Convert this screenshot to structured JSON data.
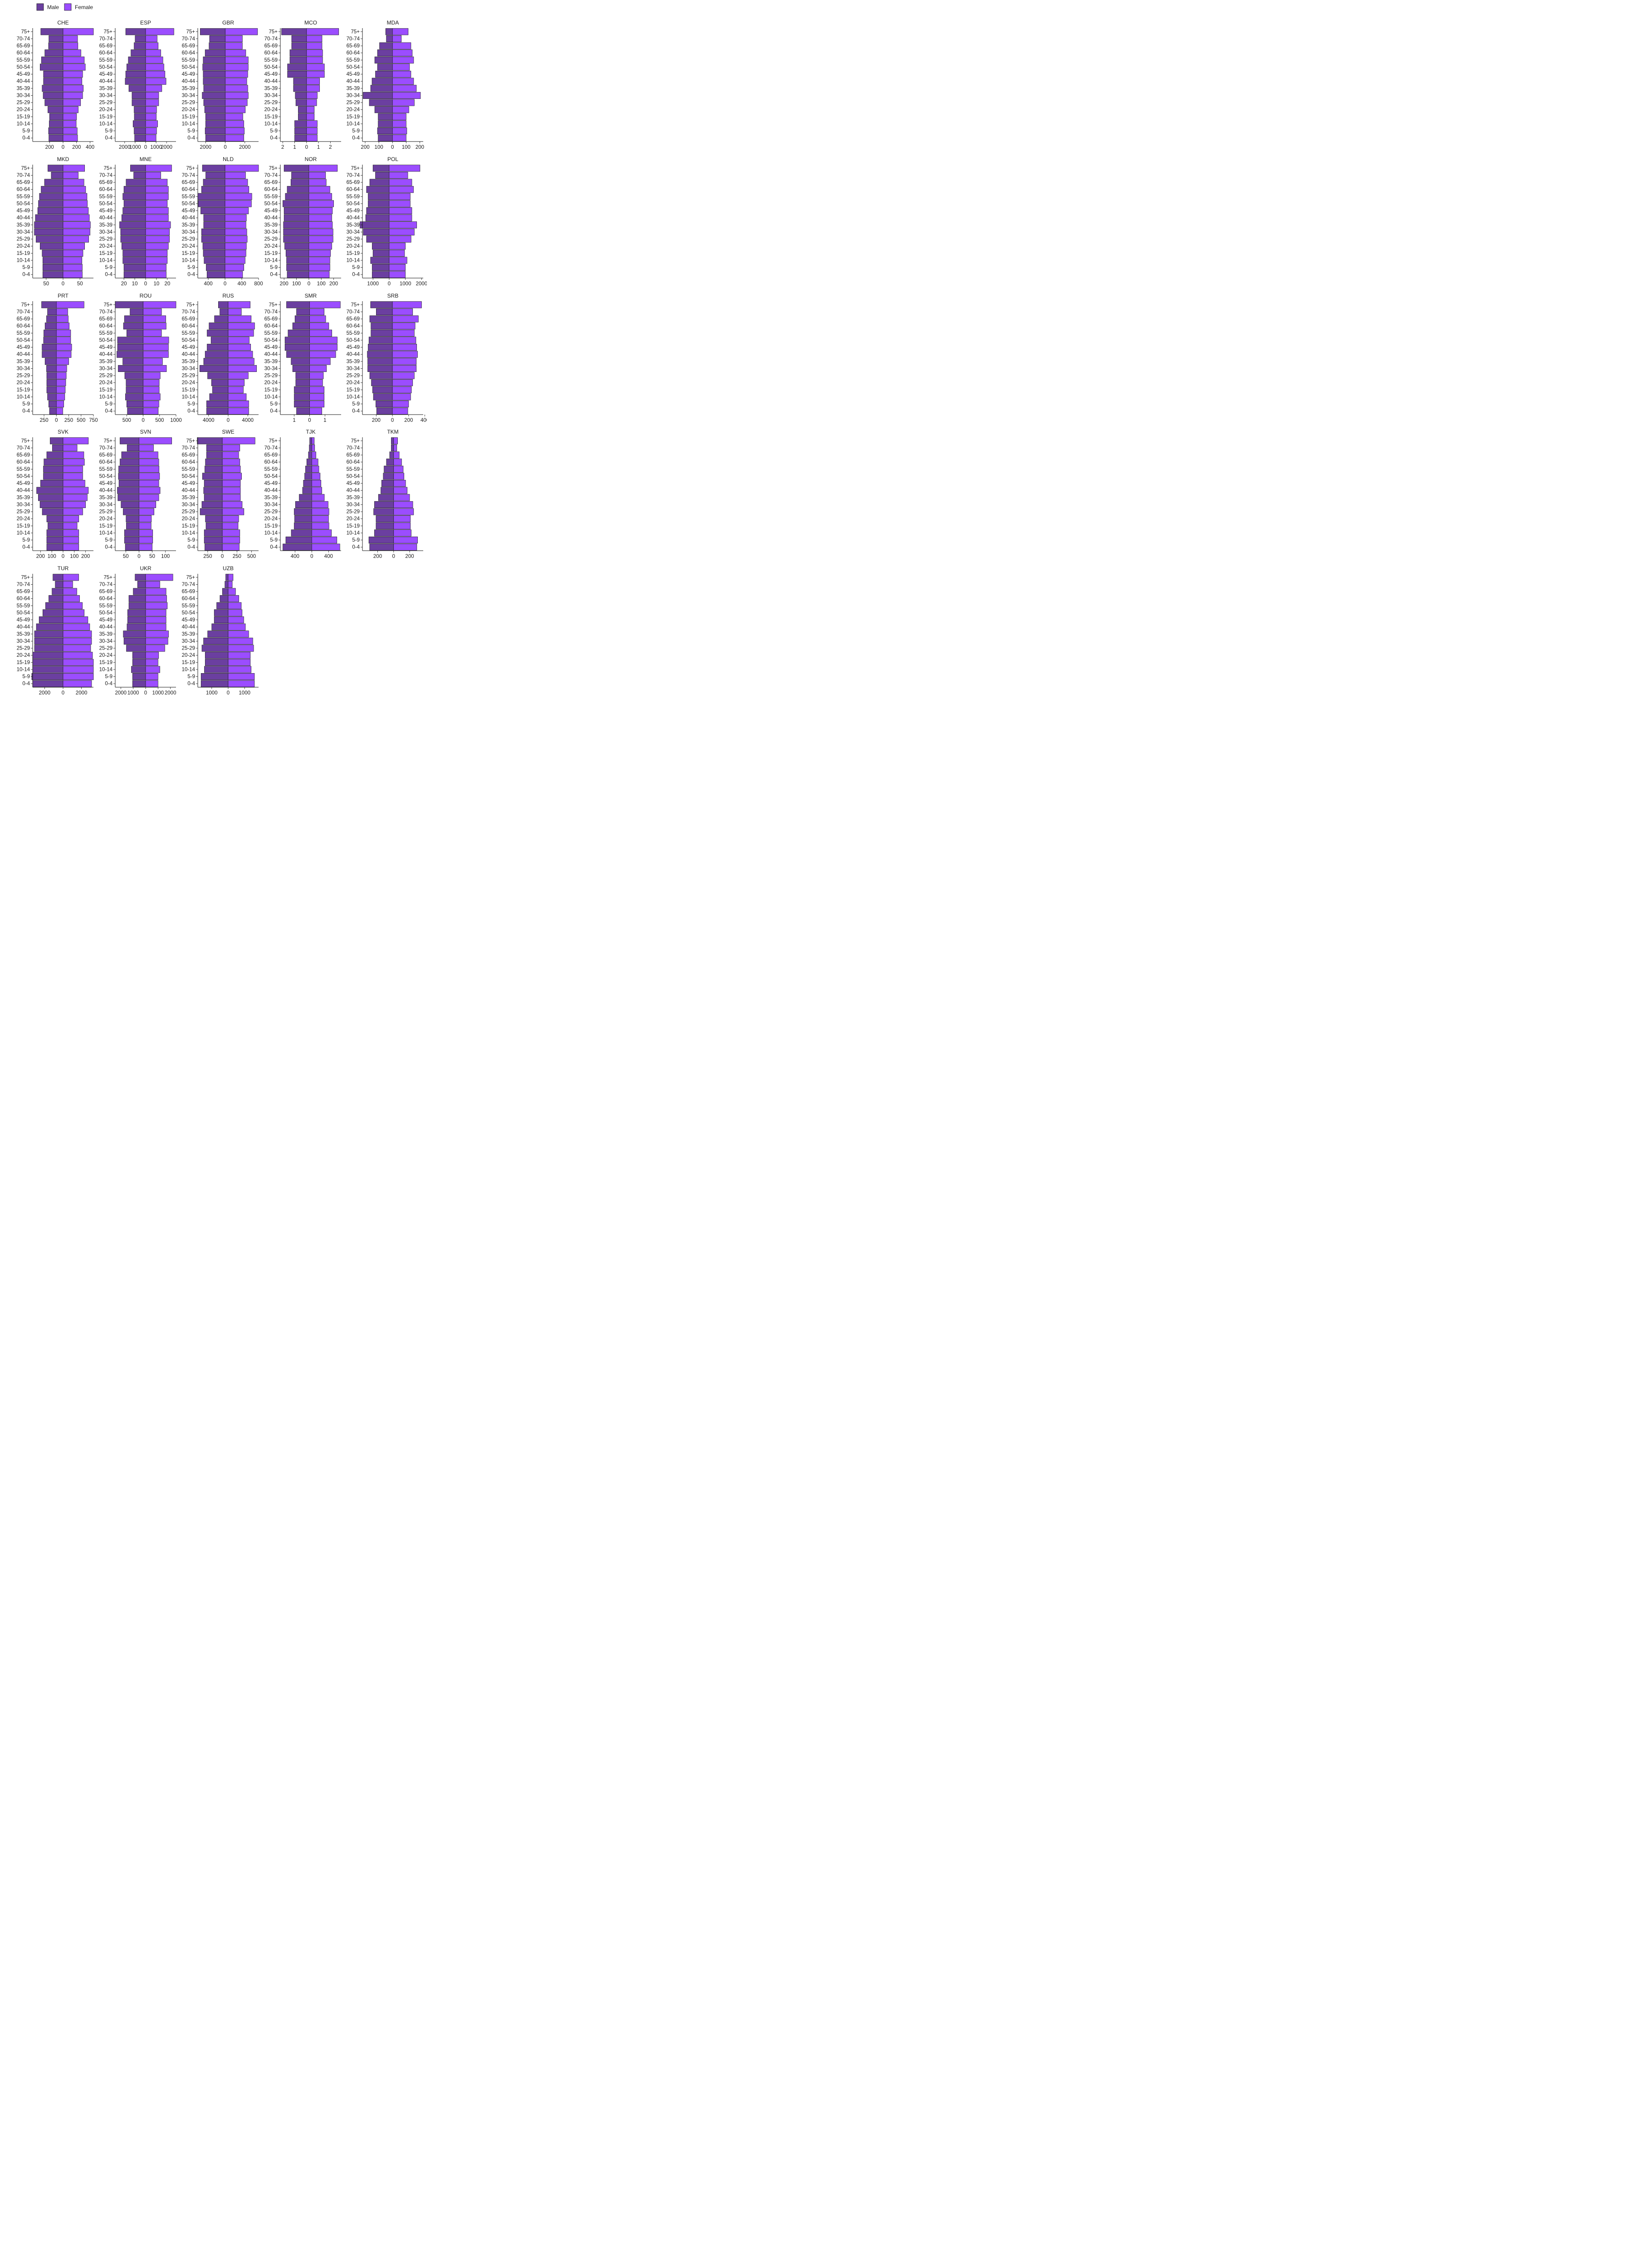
{
  "chart_data": {
    "type": "bar",
    "subtype": "population-pyramid",
    "orientation": "horizontal",
    "legend": {
      "position": "top-left",
      "items": [
        {
          "name": "Male",
          "color": "#6B3FA0"
        },
        {
          "name": "Female",
          "color": "#9B4DFF"
        }
      ]
    },
    "grid": false,
    "age_groups": [
      "0-4",
      "5-9",
      "10-14",
      "15-19",
      "20-24",
      "25-29",
      "30-34",
      "35-39",
      "40-44",
      "45-49",
      "50-54",
      "55-59",
      "60-64",
      "65-69",
      "70-74",
      "75+"
    ],
    "panels": [
      {
        "country": "CHE",
        "xlim": [
          -450,
          450
        ],
        "ticks": [
          -200,
          0,
          200,
          400
        ],
        "tick_labels": [
          "200",
          "0",
          "200",
          "400"
        ],
        "male": [
          210,
          215,
          205,
          200,
          225,
          270,
          295,
          310,
          290,
          290,
          340,
          320,
          270,
          215,
          210,
          330
        ],
        "female": [
          215,
          210,
          195,
          200,
          225,
          260,
          290,
          300,
          280,
          290,
          330,
          315,
          265,
          220,
          215,
          450
        ]
      },
      {
        "country": "ESP",
        "xlim": [
          -2900,
          2900
        ],
        "ticks": [
          -2000,
          -1000,
          0,
          1000,
          2000
        ],
        "tick_labels": [
          "2000",
          "1000",
          "0",
          "1000",
          "2000"
        ],
        "male": [
          1050,
          1100,
          1200,
          1080,
          1100,
          1300,
          1300,
          1600,
          1950,
          1900,
          1800,
          1650,
          1400,
          1100,
          1000,
          1900
        ],
        "female": [
          1000,
          1050,
          1150,
          1020,
          1050,
          1250,
          1250,
          1550,
          1950,
          1850,
          1750,
          1650,
          1450,
          1200,
          1100,
          2700
        ]
      },
      {
        "country": "GBR",
        "xlim": [
          -2800,
          3400
        ],
        "ticks": [
          -2000,
          0,
          2000
        ],
        "tick_labels": [
          "2000",
          "0",
          "2000"
        ],
        "male": [
          2000,
          2050,
          2000,
          2000,
          2100,
          2200,
          2350,
          2200,
          2250,
          2250,
          2300,
          2250,
          2050,
          1650,
          1600,
          2550
        ],
        "female": [
          1900,
          1950,
          1900,
          1800,
          2050,
          2250,
          2350,
          2300,
          2200,
          2300,
          2350,
          2350,
          2100,
          1750,
          1750,
          3300
        ]
      },
      {
        "country": "MCO",
        "xlim": [
          -2.2,
          2.9
        ],
        "ticks": [
          -2,
          -1,
          0,
          1,
          2
        ],
        "tick_labels": [
          "2",
          "1",
          "0",
          "1",
          "2"
        ],
        "male": [
          1.0,
          1.0,
          1.0,
          0.7,
          0.7,
          0.9,
          0.95,
          1.1,
          1.1,
          1.6,
          1.6,
          1.4,
          1.4,
          1.25,
          1.25,
          2.1
        ],
        "female": [
          0.9,
          0.9,
          0.9,
          0.65,
          0.65,
          0.85,
          0.9,
          1.1,
          1.1,
          1.5,
          1.5,
          1.35,
          1.35,
          1.3,
          1.3,
          2.7
        ]
      },
      {
        "country": "MDA",
        "xlim": [
          -220,
          225
        ],
        "ticks": [
          -200,
          -100,
          0,
          100,
          200
        ],
        "tick_labels": [
          "200",
          "100",
          "0",
          "100",
          "200"
        ],
        "male": [
          105,
          110,
          105,
          105,
          130,
          170,
          215,
          160,
          150,
          125,
          110,
          130,
          110,
          95,
          45,
          50
        ],
        "female": [
          100,
          105,
          100,
          100,
          120,
          160,
          205,
          175,
          155,
          135,
          125,
          155,
          145,
          135,
          65,
          115
        ]
      },
      {
        "country": "MKD",
        "xlim": [
          -90,
          90
        ],
        "ticks": [
          -50,
          0,
          50
        ],
        "tick_labels": [
          "50",
          "0",
          "50"
        ],
        "male": [
          60,
          60,
          60,
          62,
          68,
          80,
          85,
          85,
          82,
          75,
          73,
          70,
          65,
          55,
          35,
          45
        ],
        "female": [
          57,
          57,
          56,
          59,
          64,
          76,
          80,
          81,
          78,
          75,
          72,
          71,
          67,
          62,
          45,
          64
        ]
      },
      {
        "country": "MNE",
        "xlim": [
          -28,
          28
        ],
        "ticks": [
          -20,
          -10,
          0,
          10,
          20
        ],
        "tick_labels": [
          "20",
          "10",
          "0",
          "10",
          "20"
        ],
        "male": [
          20,
          20,
          21,
          21,
          22,
          23,
          23,
          24,
          22,
          21,
          20,
          21,
          20,
          18,
          11,
          14
        ],
        "female": [
          19,
          19,
          20,
          20,
          21,
          22,
          22,
          23,
          21,
          21,
          20,
          21,
          21,
          20,
          14,
          24
        ]
      },
      {
        "country": "NLD",
        "xlim": [
          -650,
          800
        ],
        "ticks": [
          -400,
          0,
          400,
          800
        ],
        "tick_labels": [
          "400",
          "0",
          "400",
          "800"
        ],
        "male": [
          430,
          450,
          500,
          520,
          530,
          560,
          560,
          510,
          510,
          580,
          640,
          650,
          560,
          520,
          460,
          540
        ],
        "female": [
          420,
          450,
          480,
          500,
          510,
          530,
          520,
          500,
          510,
          560,
          630,
          640,
          570,
          540,
          490,
          800
        ]
      },
      {
        "country": "NOR",
        "xlim": [
          -230,
          260
        ],
        "ticks": [
          -200,
          -100,
          0,
          100,
          200
        ],
        "tick_labels": [
          "200",
          "100",
          "0",
          "100",
          "200"
        ],
        "male": [
          175,
          180,
          180,
          185,
          195,
          205,
          205,
          205,
          200,
          200,
          210,
          190,
          175,
          145,
          140,
          200
        ],
        "female": [
          165,
          170,
          170,
          175,
          185,
          195,
          195,
          190,
          185,
          190,
          200,
          185,
          170,
          140,
          135,
          230
        ]
      },
      {
        "country": "POL",
        "xlim": [
          -1650,
          2100
        ],
        "ticks": [
          -1000,
          0,
          1000,
          2000
        ],
        "tick_labels": [
          "1000",
          "0",
          "1000",
          "2000"
        ],
        "male": [
          1050,
          1050,
          1150,
          1000,
          1050,
          1400,
          1600,
          1800,
          1450,
          1400,
          1300,
          1300,
          1400,
          1200,
          850,
          1000
        ],
        "female": [
          1000,
          1000,
          1100,
          950,
          1000,
          1350,
          1550,
          1700,
          1400,
          1400,
          1300,
          1300,
          1500,
          1400,
          1150,
          1900
        ]
      },
      {
        "country": "PRT",
        "xlim": [
          -480,
          750
        ],
        "ticks": [
          -250,
          0,
          250,
          500,
          750
        ],
        "tick_labels": [
          "250",
          "0",
          "250",
          "500",
          "750"
        ],
        "male": [
          140,
          155,
          180,
          195,
          195,
          195,
          200,
          230,
          290,
          290,
          260,
          255,
          230,
          200,
          180,
          300
        ],
        "female": [
          130,
          150,
          170,
          180,
          190,
          200,
          210,
          250,
          300,
          310,
          290,
          290,
          260,
          240,
          230,
          560
        ]
      },
      {
        "country": "ROU",
        "xlim": [
          -850,
          1000
        ],
        "ticks": [
          -500,
          0,
          500,
          1000
        ],
        "tick_labels": [
          "500",
          "0",
          "500",
          "1000"
        ],
        "male": [
          480,
          500,
          540,
          520,
          520,
          560,
          760,
          620,
          800,
          780,
          780,
          500,
          600,
          570,
          400,
          850
        ],
        "female": [
          460,
          480,
          520,
          490,
          490,
          520,
          710,
          590,
          770,
          770,
          780,
          560,
          700,
          690,
          560,
          1000
        ]
      },
      {
        "country": "RUS",
        "xlim": [
          -6200,
          6200
        ],
        "ticks": [
          -4000,
          0,
          4000
        ],
        "tick_labels": [
          "4000",
          "0",
          "4000"
        ],
        "male": [
          4400,
          4400,
          3800,
          3200,
          3400,
          4200,
          5800,
          5000,
          4700,
          4300,
          3500,
          4300,
          3900,
          2800,
          1700,
          2000
        ],
        "female": [
          4200,
          4200,
          3700,
          3100,
          3300,
          4100,
          5800,
          5300,
          5000,
          4600,
          4300,
          5200,
          5400,
          4700,
          2700,
          4500
        ]
      },
      {
        "country": "SMR",
        "xlim": [
          -1.9,
          2.05
        ],
        "ticks": [
          -1,
          0,
          1
        ],
        "tick_labels": [
          "1",
          "0",
          "1"
        ],
        "male": [
          0.85,
          1.0,
          1.0,
          1.0,
          0.9,
          0.9,
          1.1,
          1.2,
          1.5,
          1.6,
          1.6,
          1.4,
          1.1,
          0.95,
          0.85,
          1.5
        ],
        "female": [
          0.8,
          0.95,
          0.95,
          0.95,
          0.85,
          0.9,
          1.1,
          1.35,
          1.7,
          1.8,
          1.8,
          1.45,
          1.25,
          1.05,
          0.95,
          2.0
        ]
      },
      {
        "country": "SRB",
        "xlim": [
          -370,
          380
        ],
        "ticks": [
          -200,
          0,
          200,
          400
        ],
        "tick_labels": [
          "200",
          "0",
          "200",
          "400"
        ],
        "male": [
          195,
          205,
          235,
          245,
          260,
          280,
          305,
          305,
          310,
          300,
          290,
          265,
          265,
          280,
          200,
          270
        ],
        "female": [
          190,
          200,
          225,
          235,
          250,
          270,
          295,
          295,
          310,
          300,
          290,
          270,
          280,
          320,
          250,
          360
        ]
      },
      {
        "country": "SVK",
        "xlim": [
          -270,
          270
        ],
        "ticks": [
          -200,
          -100,
          0,
          100,
          200
        ],
        "tick_labels": [
          "200",
          "100",
          "0",
          "100",
          "200"
        ],
        "male": [
          145,
          145,
          145,
          135,
          145,
          185,
          205,
          220,
          235,
          200,
          175,
          175,
          170,
          145,
          95,
          115
        ],
        "female": [
          140,
          140,
          140,
          125,
          140,
          175,
          200,
          215,
          225,
          195,
          175,
          175,
          190,
          185,
          125,
          225
        ]
      },
      {
        "country": "SVN",
        "xlim": [
          -90,
          140
        ],
        "ticks": [
          -50,
          0,
          50,
          100
        ],
        "tick_labels": [
          "50",
          "0",
          "50",
          "100"
        ],
        "male": [
          52,
          55,
          55,
          48,
          49,
          60,
          68,
          80,
          82,
          76,
          78,
          77,
          72,
          66,
          45,
          72
        ],
        "female": [
          50,
          52,
          52,
          46,
          47,
          57,
          64,
          75,
          80,
          75,
          78,
          76,
          75,
          72,
          55,
          124
        ]
      },
      {
        "country": "SWE",
        "xlim": [
          -420,
          620
        ],
        "ticks": [
          -250,
          0,
          250,
          500
        ],
        "tick_labels": [
          "250",
          "0",
          "250",
          "500"
        ],
        "male": [
          300,
          310,
          310,
          280,
          290,
          380,
          350,
          310,
          320,
          310,
          340,
          300,
          290,
          270,
          270,
          430
        ],
        "female": [
          290,
          300,
          300,
          270,
          280,
          370,
          340,
          310,
          310,
          310,
          330,
          310,
          300,
          280,
          300,
          560
        ]
      },
      {
        "country": "TJK",
        "xlim": [
          -750,
          700
        ],
        "ticks": [
          -400,
          0,
          400
        ],
        "tick_labels": [
          "400",
          "0",
          "400"
        ],
        "male": [
          690,
          620,
          490,
          420,
          410,
          420,
          390,
          300,
          220,
          200,
          170,
          150,
          120,
          80,
          60,
          50
        ],
        "female": [
          670,
          600,
          470,
          410,
          400,
          410,
          390,
          300,
          240,
          220,
          200,
          170,
          150,
          100,
          70,
          60
        ]
      },
      {
        "country": "TKM",
        "xlim": [
          -390,
          370
        ],
        "ticks": [
          -200,
          0,
          200
        ],
        "tick_labels": [
          "200",
          "0",
          "200"
        ],
        "male": [
          300,
          310,
          240,
          220,
          220,
          250,
          240,
          190,
          160,
          150,
          130,
          120,
          90,
          50,
          30,
          30
        ],
        "female": [
          290,
          300,
          220,
          210,
          210,
          250,
          240,
          200,
          170,
          150,
          130,
          120,
          100,
          70,
          40,
          50
        ]
      },
      {
        "country": "TUR",
        "xlim": [
          -3300,
          3300
        ],
        "ticks": [
          -2000,
          0,
          2000
        ],
        "tick_labels": [
          "2000",
          "0",
          "2000"
        ],
        "male": [
          3300,
          3400,
          3300,
          3300,
          3300,
          3100,
          3100,
          3100,
          2900,
          2600,
          2200,
          1900,
          1550,
          1200,
          850,
          1100
        ],
        "female": [
          3100,
          3300,
          3300,
          3300,
          3200,
          3000,
          3100,
          3100,
          2900,
          2700,
          2300,
          2100,
          1800,
          1500,
          1050,
          1700
        ]
      },
      {
        "country": "UKR",
        "xlim": [
          -2450,
          2450
        ],
        "ticks": [
          -2000,
          -1000,
          0,
          1000,
          2000
        ],
        "tick_labels": [
          "2000",
          "1000",
          "0",
          "1000",
          "2000"
        ],
        "male": [
          1050,
          1050,
          1150,
          1050,
          1050,
          1550,
          1750,
          1800,
          1500,
          1450,
          1450,
          1350,
          1350,
          1000,
          650,
          850
        ],
        "female": [
          1000,
          1000,
          1150,
          1000,
          1050,
          1550,
          1800,
          1850,
          1650,
          1650,
          1650,
          1750,
          1700,
          1650,
          1150,
          2200
        ]
      },
      {
        "country": "UZB",
        "xlim": [
          -1850,
          1850
        ],
        "ticks": [
          -1000,
          0,
          1000
        ],
        "tick_labels": [
          "1000",
          "0",
          "1000"
        ],
        "male": [
          1650,
          1650,
          1450,
          1400,
          1400,
          1600,
          1500,
          1250,
          1000,
          850,
          850,
          700,
          500,
          350,
          200,
          150
        ],
        "female": [
          1600,
          1600,
          1400,
          1350,
          1350,
          1550,
          1500,
          1250,
          1050,
          950,
          850,
          800,
          650,
          450,
          250,
          300
        ]
      }
    ]
  }
}
